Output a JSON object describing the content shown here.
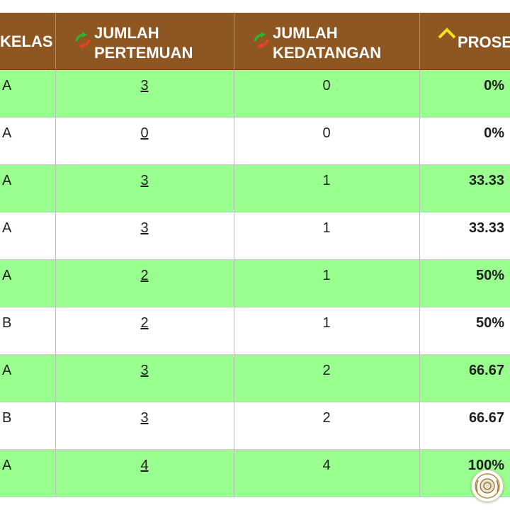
{
  "header": {
    "col_kelas": "KELAS",
    "col_pertemuan_line1": "JUMLAH",
    "col_pertemuan_line2": "PERTEMUAN",
    "col_kedatangan_line1": "JUMLAH",
    "col_kedatangan_line2": "KEDATANGAN",
    "col_persentase": "PROSE"
  },
  "rows": [
    {
      "kelas": "A",
      "pertemuan": "3",
      "kedatangan": "0",
      "persen": "0%"
    },
    {
      "kelas": "A",
      "pertemuan": "0",
      "kedatangan": "0",
      "persen": "0%"
    },
    {
      "kelas": "A",
      "pertemuan": "3",
      "kedatangan": "1",
      "persen": "33.33"
    },
    {
      "kelas": "A",
      "pertemuan": "3",
      "kedatangan": "1",
      "persen": "33.33"
    },
    {
      "kelas": "A",
      "pertemuan": "2",
      "kedatangan": "1",
      "persen": "50%"
    },
    {
      "kelas": "B",
      "pertemuan": "2",
      "kedatangan": "1",
      "persen": "50%"
    },
    {
      "kelas": "A",
      "pertemuan": "3",
      "kedatangan": "2",
      "persen": "66.67"
    },
    {
      "kelas": "B",
      "pertemuan": "3",
      "kedatangan": "2",
      "persen": "66.67"
    },
    {
      "kelas": "A",
      "pertemuan": "4",
      "kedatangan": "4",
      "persen": "100%"
    }
  ],
  "icons": {
    "sort": "sort-arrows-icon",
    "sorted_asc": "chevron-up-icon",
    "seal": "emblem-seal-icon"
  },
  "colors": {
    "header_bg": "#8e5722",
    "row_green": "#99ff8e",
    "row_white": "#ffffff"
  }
}
